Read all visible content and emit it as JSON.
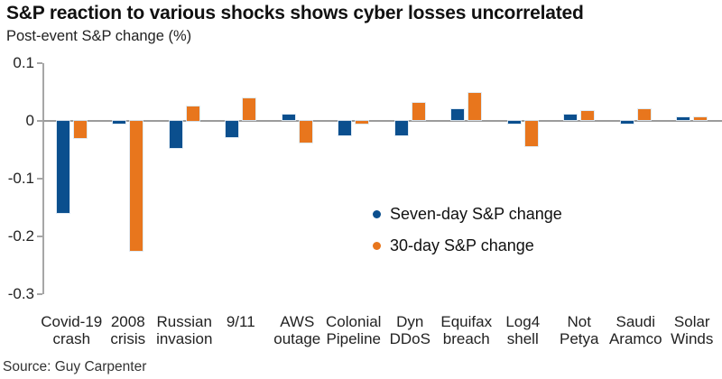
{
  "header": {
    "title": "S&P reaction to various shocks shows cyber losses uncorrelated",
    "subtitle": "Post-event S&P change (%)"
  },
  "legend": {
    "items": [
      {
        "label": "Seven-day S&P change",
        "color": "#0b4f8e"
      },
      {
        "label": "30-day S&P change",
        "color": "#e8761d"
      }
    ]
  },
  "source": "Source: Guy Carpenter",
  "colors": {
    "seven_day": "#0b4f8e",
    "thirty_day": "#e8761d",
    "axis": "#a6a6a6",
    "baseline": "#9b9b9b"
  },
  "chart_data": {
    "type": "bar",
    "title": "S&P reaction to various shocks shows cyber losses uncorrelated",
    "ylabel": "Post-event S&P change (%)",
    "categories": [
      "Covid-19 crash",
      "2008 crisis",
      "Russian invasion",
      "9/11",
      "AWS outage",
      "Colonial Pipeline",
      "Dyn DDoS",
      "Equifax breach",
      "Log4 shell",
      "Not Petya",
      "Saudi Aramco",
      "Solar Winds"
    ],
    "series": [
      {
        "name": "Seven-day S&P change",
        "color": "#0b4f8e",
        "values": [
          -0.16,
          -0.005,
          -0.048,
          -0.029,
          0.01,
          -0.025,
          -0.026,
          0.02,
          -0.006,
          0.01,
          -0.006,
          0.005
        ]
      },
      {
        "name": "30-day S&P change",
        "color": "#e8761d",
        "values": [
          -0.03,
          -0.225,
          0.025,
          0.039,
          -0.039,
          -0.006,
          0.03,
          0.048,
          -0.044,
          0.016,
          0.02,
          0.006
        ]
      }
    ],
    "ylim": [
      -0.3,
      0.1
    ],
    "yticks": [
      "0.1",
      "0",
      "-0.1",
      "-0.2",
      "-0.3"
    ],
    "grid": false,
    "legend_position": "inside-right"
  }
}
